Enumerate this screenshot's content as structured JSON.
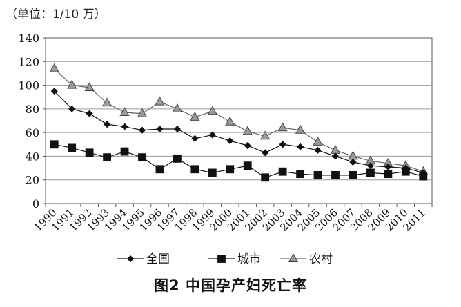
{
  "unit_label": "（单位：1/10 万）",
  "figure_title": "图2  中国孕产妇死亡率",
  "colors": {
    "national": "#111111",
    "urban": "#111111",
    "rural": "#9a9a9a",
    "rural_stroke": "#444444"
  },
  "chart_data": {
    "type": "line",
    "title": "图2  中国孕产妇死亡率",
    "ylabel": "（单位：1/10 万）",
    "xlabel": "",
    "x": [
      "1990",
      "1991",
      "1992",
      "1993",
      "1994",
      "1995",
      "1996",
      "1997",
      "1998",
      "1999",
      "2000",
      "2001",
      "2002",
      "2003",
      "2004",
      "2005",
      "2006",
      "2007",
      "2008",
      "2009",
      "2010",
      "2011"
    ],
    "ylim": [
      0,
      140
    ],
    "yticks": [
      0,
      20,
      40,
      60,
      80,
      100,
      120,
      140
    ],
    "grid": true,
    "legend_position": "bottom",
    "series": [
      {
        "name": "全国",
        "marker": "diamond",
        "values": [
          95,
          80,
          76,
          67,
          65,
          62,
          63,
          63,
          55,
          58,
          53,
          49,
          43,
          50,
          48,
          45,
          40,
          35,
          32,
          31,
          30,
          26
        ]
      },
      {
        "name": "城市",
        "marker": "square",
        "values": [
          50,
          47,
          43,
          39,
          44,
          39,
          29,
          38,
          29,
          26,
          29,
          32,
          22,
          27,
          25,
          24,
          24,
          24,
          26,
          25,
          27,
          23
        ]
      },
      {
        "name": "农村",
        "marker": "triangle",
        "values": [
          114,
          100,
          98,
          85,
          77,
          76,
          86,
          80,
          73,
          78,
          69,
          61,
          57,
          64,
          62,
          52,
          45,
          40,
          36,
          34,
          32,
          27
        ]
      }
    ]
  }
}
